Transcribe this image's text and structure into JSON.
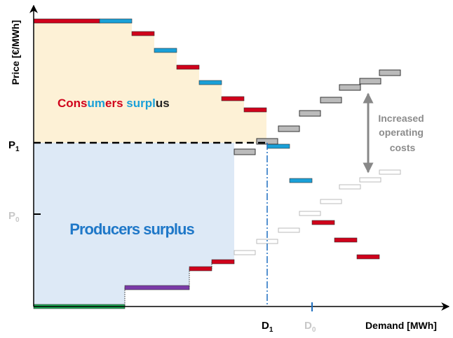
{
  "axes": {
    "y_label": "Price [€/MWh]",
    "x_label": "Demand [MWh]"
  },
  "price_marks": [
    {
      "base": "P",
      "sub": "1"
    },
    {
      "base": "P",
      "sub": "0"
    }
  ],
  "demand_marks": [
    {
      "base": "D",
      "sub": "1"
    },
    {
      "base": "D",
      "sub": "0"
    }
  ],
  "consumers_surplus": [
    "Cons",
    "um",
    "ers ",
    "surpl",
    "us"
  ],
  "producers_surplus": "Producers surplus",
  "annotation": [
    "Increased",
    "operating",
    "costs"
  ]
}
